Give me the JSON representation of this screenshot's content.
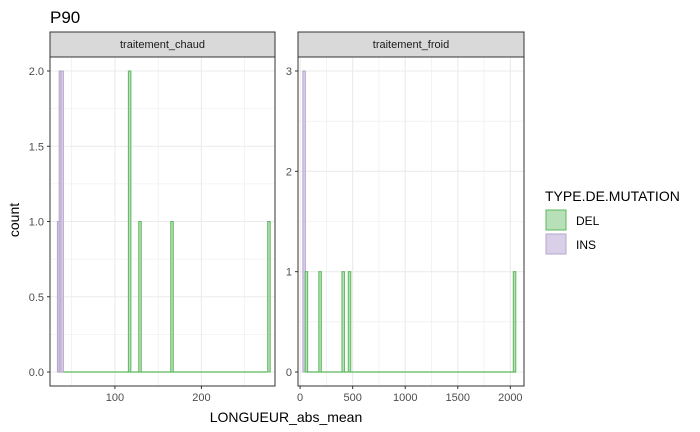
{
  "chart_data": {
    "type": "bar",
    "title": "P90",
    "xlabel": "LONGUEUR_abs_mean",
    "ylabel": "count",
    "legend": {
      "title": "TYPE.DE.MUTATION",
      "placement": "right",
      "entries": [
        {
          "name": "DEL",
          "fill": "#b8e0b8",
          "stroke": "#5cb85c"
        },
        {
          "name": "INS",
          "fill": "#d9cfe6",
          "stroke": "#b6a4cf"
        }
      ]
    },
    "grid": true,
    "facets": [
      {
        "label": "traitement_chaud",
        "xlim": [
          25,
          285
        ],
        "ylim": [
          0,
          2
        ],
        "xticks": [
          100,
          200
        ],
        "yticks": [
          0.0,
          0.5,
          1.0,
          1.5,
          2.0
        ],
        "ytick_labels": [
          "0.0",
          "0.5",
          "1.0",
          "1.5",
          "2.0"
        ],
        "series": [
          {
            "name": "INS",
            "points": [
              {
                "x": 35,
                "y": 1
              },
              {
                "x": 37,
                "y": 2
              },
              {
                "x": 39,
                "y": 2
              }
            ]
          },
          {
            "name": "DEL",
            "points": [
              {
                "x": 117,
                "y": 2
              },
              {
                "x": 129,
                "y": 1
              },
              {
                "x": 166,
                "y": 1
              },
              {
                "x": 278,
                "y": 1
              }
            ]
          }
        ]
      },
      {
        "label": "traitement_froid",
        "xlim": [
          -20,
          2130
        ],
        "ylim": [
          0,
          3
        ],
        "xticks": [
          0,
          500,
          1000,
          1500,
          2000
        ],
        "yticks": [
          0,
          1,
          2,
          3
        ],
        "ytick_labels": [
          "0",
          "1",
          "2",
          "3"
        ],
        "series": [
          {
            "name": "INS",
            "points": [
              {
                "x": 38,
                "y": 3
              }
            ]
          },
          {
            "name": "DEL",
            "points": [
              {
                "x": 60,
                "y": 1
              },
              {
                "x": 190,
                "y": 1
              },
              {
                "x": 410,
                "y": 1
              },
              {
                "x": 470,
                "y": 1
              },
              {
                "x": 2040,
                "y": 1
              }
            ]
          }
        ]
      }
    ]
  }
}
